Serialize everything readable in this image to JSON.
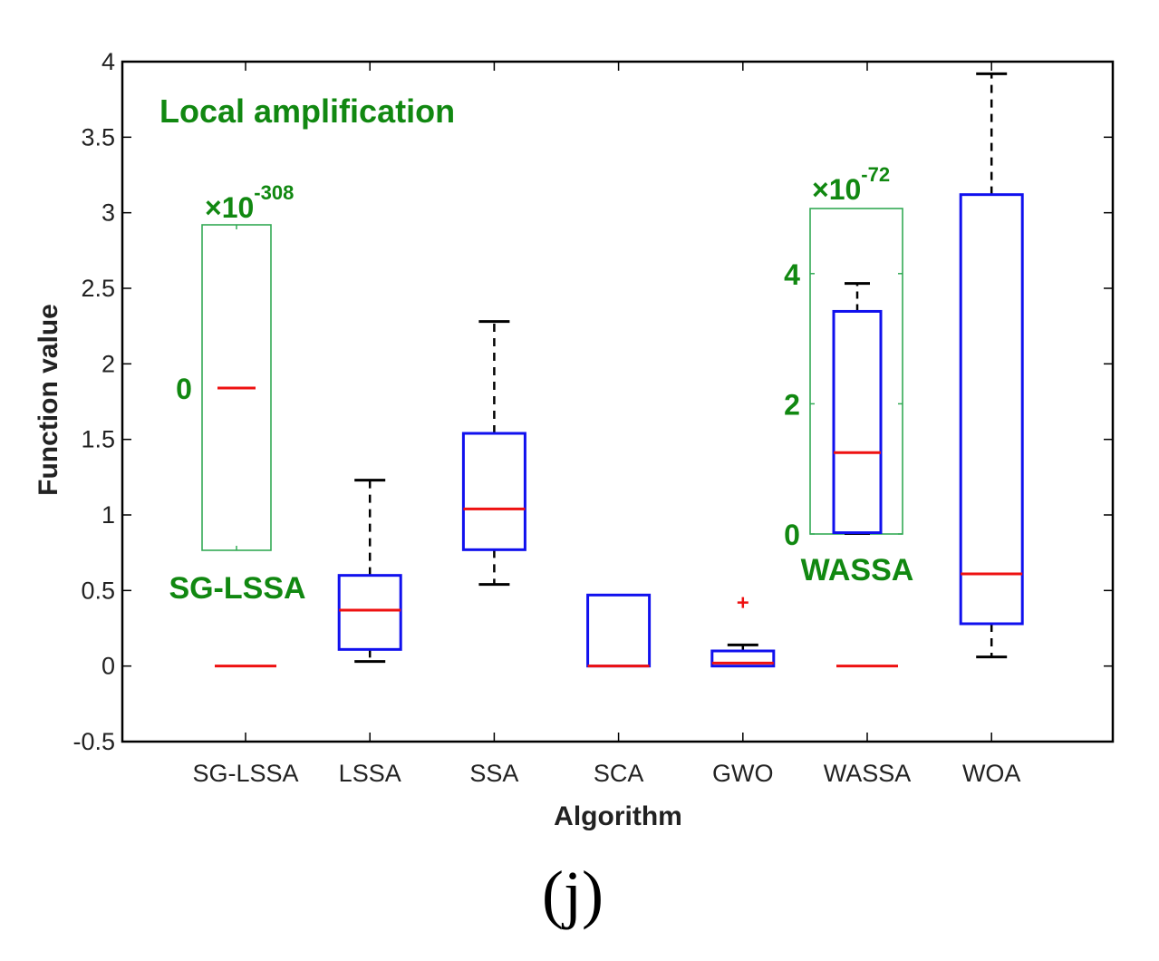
{
  "chart_data": {
    "type": "box",
    "xlabel": "Algorithm",
    "ylabel": "Function value",
    "ylim": [
      -0.5,
      4
    ],
    "yticks": [
      "-0.5",
      "0",
      "0.5",
      "1",
      "1.5",
      "2",
      "2.5",
      "3",
      "3.5",
      "4"
    ],
    "categories": [
      "SG-LSSA",
      "LSSA",
      "SSA",
      "SCA",
      "GWO",
      "WASSA",
      "WOA"
    ],
    "boxes": [
      {
        "name": "SG-LSSA",
        "min": 0,
        "q1": 0,
        "median": 0,
        "q3": 0,
        "max": 0,
        "outliers": []
      },
      {
        "name": "LSSA",
        "min": 0.03,
        "q1": 0.11,
        "median": 0.37,
        "q3": 0.6,
        "max": 1.23,
        "outliers": []
      },
      {
        "name": "SSA",
        "min": 0.54,
        "q1": 0.77,
        "median": 1.04,
        "q3": 1.54,
        "max": 2.28,
        "outliers": []
      },
      {
        "name": "SCA",
        "min": 0,
        "q1": 0,
        "median": 0.0,
        "q3": 0.47,
        "max": 0.47,
        "outliers": []
      },
      {
        "name": "GWO",
        "min": 0,
        "q1": 0,
        "median": 0.02,
        "q3": 0.1,
        "max": 0.14,
        "outliers": [
          0.42
        ]
      },
      {
        "name": "WASSA",
        "min": 0,
        "q1": 0,
        "median": 0,
        "q3": 0,
        "max": 0,
        "outliers": []
      },
      {
        "name": "WOA",
        "min": 0.06,
        "q1": 0.28,
        "median": 0.61,
        "q3": 3.12,
        "max": 3.92,
        "outliers": []
      }
    ],
    "annotation_title": "Local amplification",
    "insets": [
      {
        "label": "SG-LSSA",
        "scale_base": "×10",
        "scale_exp": "-308",
        "tick_labels": [
          "0"
        ],
        "median": 0
      },
      {
        "label": "WASSA",
        "scale_base": "×10",
        "scale_exp": "-72",
        "tick_labels": [
          "0",
          "2",
          "4"
        ],
        "ylim": [
          0,
          5
        ],
        "box": {
          "min": 0,
          "q1": 0.02,
          "median": 1.25,
          "q3": 3.42,
          "max": 3.85
        }
      }
    ],
    "colors": {
      "box": "#1010ee",
      "median": "#ee1111",
      "whisker": "#000000",
      "inset": "#33aa55",
      "annotation": "#118811"
    }
  },
  "caption": "(j)"
}
